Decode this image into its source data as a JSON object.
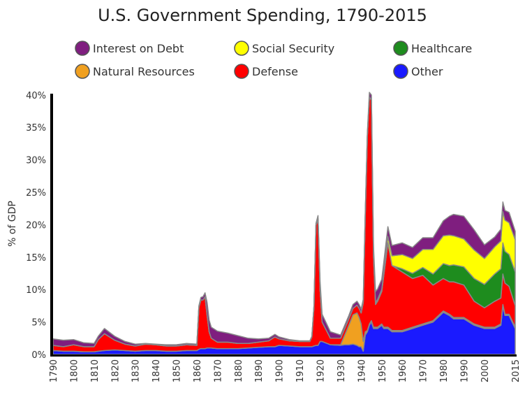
{
  "chart_data": {
    "type": "area",
    "stacked": true,
    "title": "U.S. Government Spending, 1790-2015",
    "ylabel": "% of GDP",
    "xlabel": "",
    "xlim": [
      1790,
      2015
    ],
    "ylim": [
      0,
      42
    ],
    "x_ticks": [
      "1790",
      "1800",
      "1810",
      "1820",
      "1830",
      "1840",
      "1850",
      "1860",
      "1870",
      "1880",
      "1890",
      "1900",
      "1910",
      "1920",
      "1930",
      "1940",
      "1950",
      "1960",
      "1970",
      "1980",
      "1990",
      "2000",
      "2015"
    ],
    "y_ticks": [
      "0%",
      "5%",
      "10%",
      "15%",
      "20%",
      "25%",
      "30%",
      "35%",
      "40%"
    ],
    "legend_position": "top",
    "x": [
      1790,
      1795,
      1800,
      1805,
      1810,
      1812,
      1815,
      1820,
      1825,
      1830,
      1835,
      1840,
      1845,
      1850,
      1855,
      1860,
      1861,
      1862,
      1863,
      1864,
      1865,
      1866,
      1867,
      1870,
      1875,
      1880,
      1885,
      1890,
      1895,
      1898,
      1900,
      1905,
      1910,
      1915,
      1916,
      1917,
      1918,
      1919,
      1920,
      1921,
      1925,
      1930,
      1932,
      1934,
      1936,
      1938,
      1939,
      1940,
      1941,
      1942,
      1943,
      1944,
      1945,
      1946,
      1947,
      1948,
      1950,
      1951,
      1953,
      1955,
      1960,
      1965,
      1970,
      1975,
      1980,
      1983,
      1985,
      1990,
      1995,
      2000,
      2005,
      2008,
      2009,
      2010,
      2012,
      2015
    ],
    "series": [
      {
        "name": "Other",
        "color": "#1a1aff",
        "values": [
          0.6,
          0.5,
          0.5,
          0.4,
          0.4,
          0.5,
          0.6,
          0.7,
          0.6,
          0.5,
          0.6,
          0.6,
          0.5,
          0.5,
          0.6,
          0.6,
          0.8,
          0.9,
          0.9,
          0.9,
          1.0,
          1.0,
          1.0,
          0.9,
          0.9,
          0.9,
          1.0,
          1.1,
          1.2,
          1.2,
          1.4,
          1.3,
          1.2,
          1.2,
          1.2,
          1.3,
          1.4,
          1.4,
          2.0,
          2.0,
          1.5,
          1.4,
          1.5,
          1.5,
          1.6,
          1.4,
          1.2,
          1.2,
          0.5,
          3.0,
          3.5,
          4.5,
          5.0,
          4.0,
          4.0,
          4.0,
          4.5,
          4.0,
          4.0,
          3.5,
          3.5,
          4.0,
          4.5,
          5.0,
          6.5,
          6.0,
          5.5,
          5.5,
          4.5,
          4.0,
          4.0,
          4.5,
          7.5,
          6.0,
          6.0,
          4.0
        ]
      },
      {
        "name": "Natural Resources",
        "color": "#f0a020",
        "values": [
          0,
          0,
          0,
          0,
          0,
          0,
          0,
          0,
          0,
          0,
          0,
          0,
          0,
          0,
          0,
          0,
          0,
          0,
          0,
          0,
          0,
          0,
          0,
          0,
          0,
          0,
          0,
          0,
          0,
          0,
          0,
          0,
          0,
          0,
          0,
          0,
          0,
          0,
          0,
          0,
          0,
          0.1,
          1.5,
          3.0,
          4.5,
          5.0,
          4.5,
          3.5,
          1.5,
          0.5,
          0.2,
          0.2,
          0.2,
          0.2,
          0.2,
          0.2,
          0.2,
          0.2,
          0.2,
          0.2,
          0.2,
          0.2,
          0.2,
          0.2,
          0.2,
          0.2,
          0.2,
          0.2,
          0.2,
          0.2,
          0.2,
          0.2,
          0.2,
          0.2,
          0.2,
          0.2
        ]
      },
      {
        "name": "Defense",
        "color": "#ff0000",
        "values": [
          0.8,
          0.7,
          1.0,
          0.8,
          0.8,
          1.8,
          2.6,
          1.5,
          1.0,
          0.8,
          1.0,
          0.9,
          0.8,
          0.8,
          0.9,
          0.8,
          6.5,
          7.5,
          7.5,
          8.0,
          5.0,
          2.5,
          1.5,
          1.0,
          1.0,
          0.8,
          0.7,
          0.8,
          0.9,
          1.5,
          1.0,
          0.8,
          0.8,
          0.8,
          1.5,
          6.0,
          18.5,
          19.5,
          8.0,
          3.0,
          1.0,
          1.0,
          1.0,
          1.0,
          1.0,
          1.2,
          1.4,
          1.7,
          6.0,
          18.0,
          30.0,
          35.0,
          34.0,
          11.0,
          3.5,
          4.0,
          5.0,
          8.0,
          13.0,
          10.0,
          9.0,
          7.5,
          7.5,
          5.5,
          5.0,
          5.0,
          5.5,
          5.0,
          3.5,
          3.0,
          4.0,
          4.0,
          4.7,
          4.8,
          4.3,
          3.3
        ]
      },
      {
        "name": "Healthcare",
        "color": "#1e8c1e",
        "values": [
          0,
          0,
          0,
          0,
          0,
          0,
          0,
          0,
          0,
          0,
          0,
          0,
          0,
          0,
          0,
          0,
          0,
          0,
          0,
          0,
          0,
          0,
          0,
          0,
          0,
          0,
          0,
          0,
          0,
          0,
          0,
          0,
          0,
          0,
          0,
          0,
          0,
          0,
          0,
          0,
          0,
          0,
          0,
          0,
          0,
          0,
          0,
          0,
          0,
          0,
          0,
          0,
          0,
          0,
          0,
          0,
          0,
          0,
          0,
          0,
          0.5,
          0.8,
          1.2,
          1.7,
          2.3,
          2.5,
          2.6,
          2.8,
          3.5,
          3.6,
          4.2,
          4.5,
          4.8,
          4.9,
          4.9,
          5.2
        ]
      },
      {
        "name": "Social Security",
        "color": "#ffff00",
        "values": [
          0,
          0,
          0,
          0,
          0,
          0,
          0,
          0,
          0,
          0,
          0,
          0,
          0,
          0,
          0,
          0,
          0,
          0,
          0,
          0,
          0,
          0,
          0,
          0,
          0,
          0,
          0,
          0,
          0,
          0,
          0,
          0,
          0,
          0,
          0,
          0,
          0,
          0,
          0,
          0,
          0,
          0,
          0,
          0,
          0,
          0,
          0,
          0,
          0,
          0,
          0,
          0,
          0,
          0.2,
          0.3,
          0.3,
          0.3,
          0.5,
          1.0,
          1.5,
          2.2,
          2.3,
          2.8,
          3.8,
          4.3,
          4.7,
          4.5,
          4.3,
          4.4,
          4.0,
          4.2,
          4.3,
          4.8,
          4.8,
          4.9,
          5.0
        ]
      },
      {
        "name": "Interest on Debt",
        "color": "#7f1e7f",
        "values": [
          1.0,
          1.0,
          0.8,
          0.6,
          0.5,
          0.5,
          0.8,
          0.6,
          0.4,
          0.3,
          0.1,
          0.1,
          0.2,
          0.2,
          0.2,
          0.2,
          0.2,
          0.4,
          0.5,
          0.6,
          2.0,
          1.8,
          1.7,
          1.7,
          1.4,
          1.2,
          0.8,
          0.5,
          0.4,
          0.4,
          0.3,
          0.2,
          0.1,
          0.1,
          0.1,
          0.1,
          0.3,
          0.5,
          1.2,
          1.2,
          1.0,
          0.5,
          0.5,
          0.5,
          0.6,
          0.6,
          0.6,
          0.6,
          0.5,
          0.5,
          0.5,
          0.7,
          0.8,
          1.3,
          1.7,
          1.6,
          1.6,
          1.5,
          1.5,
          1.6,
          1.8,
          1.7,
          1.8,
          1.8,
          2.3,
          2.9,
          3.3,
          3.5,
          3.1,
          2.1,
          1.5,
          1.8,
          1.5,
          1.5,
          1.6,
          1.3
        ]
      }
    ]
  },
  "legend": [
    {
      "label": "Interest on Debt",
      "color": "#7f1e7f"
    },
    {
      "label": "Social Security",
      "color": "#ffff00"
    },
    {
      "label": "Healthcare",
      "color": "#1e8c1e"
    },
    {
      "label": "Natural Resources",
      "color": "#f0a020"
    },
    {
      "label": "Defense",
      "color": "#ff0000"
    },
    {
      "label": "Other",
      "color": "#1a1aff"
    }
  ]
}
